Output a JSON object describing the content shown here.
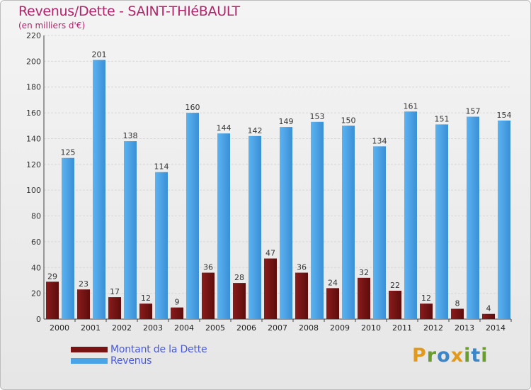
{
  "header": {
    "title": "Revenus/Dette - SAINT-THIéBAULT",
    "subtitle": "(en milliers d'€)"
  },
  "legend": {
    "items": [
      {
        "label": "Montant de la Dette",
        "color": "#7a1414"
      },
      {
        "label": "Revenus",
        "color": "#4aa3e6"
      }
    ]
  },
  "logo": {
    "letters": [
      "P",
      "r",
      "o",
      "x",
      "i",
      "t",
      "i"
    ],
    "colors": [
      "#e39a1c",
      "#6a9e2a",
      "#3b86c8",
      "#e39a1c",
      "#6a9e2a",
      "#3b86c8",
      "#6a9e2a"
    ]
  },
  "chart_data": {
    "type": "bar",
    "categories": [
      "2000",
      "2001",
      "2002",
      "2003",
      "2004",
      "2005",
      "2006",
      "2007",
      "2008",
      "2009",
      "2010",
      "2011",
      "2012",
      "2013",
      "2014"
    ],
    "series": [
      {
        "name": "Montant de la Dette",
        "values": [
          29,
          23,
          17,
          12,
          9,
          36,
          28,
          47,
          36,
          24,
          32,
          22,
          12,
          8,
          4
        ],
        "color": "#7a1414"
      },
      {
        "name": "Revenus",
        "values": [
          125,
          201,
          138,
          114,
          160,
          144,
          142,
          149,
          153,
          150,
          134,
          161,
          151,
          157,
          154
        ],
        "color": "#4aa3e6"
      }
    ],
    "yticks": [
      "0",
      "20",
      "40",
      "60",
      "80",
      "100",
      "120",
      "140",
      "160",
      "180",
      "200",
      "220"
    ],
    "ylim": [
      0,
      220
    ],
    "grid": "horizontal",
    "legend_position": "bottom-left"
  }
}
